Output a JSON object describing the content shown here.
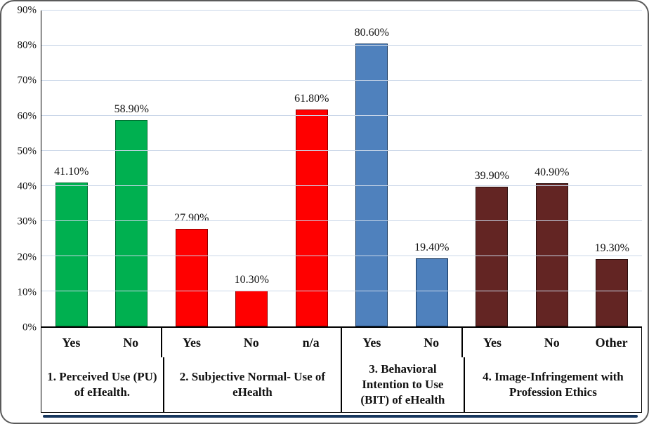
{
  "chart": {
    "background": "#FFFFFF",
    "frame_border_color": "#5A5A5A",
    "gridline_color": "#C9D6E8",
    "axis_color": "#000000",
    "accent_line_color": "#17375E",
    "text_color": "#111111"
  },
  "chart_data": {
    "type": "bar",
    "title": "",
    "xlabel": "",
    "ylabel": "",
    "ylim": [
      0,
      90
    ],
    "grid": true,
    "legend": "none",
    "y_ticks": [
      {
        "value": 0,
        "label": "0%"
      },
      {
        "value": 10,
        "label": "10%"
      },
      {
        "value": 20,
        "label": "20%"
      },
      {
        "value": 30,
        "label": "30%"
      },
      {
        "value": 40,
        "label": "40%"
      },
      {
        "value": 50,
        "label": "50%"
      },
      {
        "value": 60,
        "label": "60%"
      },
      {
        "value": 70,
        "label": "70%"
      },
      {
        "value": 80,
        "label": "80%"
      },
      {
        "value": 90,
        "label": "90%"
      }
    ],
    "groups": [
      {
        "label": "1. Perceived Use (PU) of eHealth.",
        "color": "#00B050",
        "border_color": "#006B30",
        "bars": [
          {
            "category": "Yes",
            "value": 41.1,
            "label": "41.10%"
          },
          {
            "category": "No",
            "value": 58.9,
            "label": "58.90%"
          }
        ]
      },
      {
        "label": "2. Subjective Normal- Use of eHealth",
        "color": "#FF0000",
        "border_color": "#8B0000",
        "bars": [
          {
            "category": "Yes",
            "value": 27.9,
            "label": "27.90%"
          },
          {
            "category": "No",
            "value": 10.3,
            "label": "10.30%"
          },
          {
            "category": "n/a",
            "value": 61.8,
            "label": "61.80%"
          }
        ]
      },
      {
        "label": "3. Behavioral Intention to Use (BIT) of eHealth",
        "color": "#4F81BD",
        "border_color": "#17375E",
        "bars": [
          {
            "category": "Yes",
            "value": 80.6,
            "label": "80.60%"
          },
          {
            "category": "No",
            "value": 19.4,
            "label": "19.40%"
          }
        ]
      },
      {
        "label": "4. Image-Infringement with Profession Ethics",
        "color": "#632523",
        "border_color": "#2B0F0E",
        "bars": [
          {
            "category": "Yes",
            "value": 39.9,
            "label": "39.90%"
          },
          {
            "category": "No",
            "value": 40.9,
            "label": "40.90%"
          },
          {
            "category": "Other",
            "value": 19.3,
            "label": "19.30%"
          }
        ]
      }
    ]
  }
}
